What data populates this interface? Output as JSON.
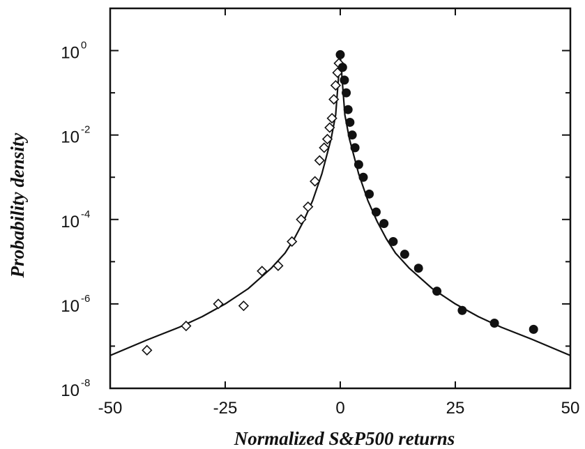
{
  "chart_data": {
    "type": "scatter",
    "title": "",
    "xlabel": "Normalized S&P500 returns",
    "ylabel": "Probability density",
    "xlim": [
      -50,
      50
    ],
    "ylim": [
      1e-08,
      10
    ],
    "yscale": "log",
    "grid": false,
    "x_ticks": [
      -50,
      -25,
      0,
      25,
      50
    ],
    "x_tick_labels": [
      "-50",
      "-25",
      "0",
      "25",
      "50"
    ],
    "y_ticks": [
      {
        "value": 1e-08,
        "base": "10",
        "exp": "-8"
      },
      {
        "value": 1e-06,
        "base": "10",
        "exp": "-6"
      },
      {
        "value": 0.0001,
        "base": "10",
        "exp": "-4"
      },
      {
        "value": 0.01,
        "base": "10",
        "exp": "-2"
      },
      {
        "value": 1,
        "base": "10",
        "exp": "0"
      }
    ],
    "series": [
      {
        "marker": "open-diamond",
        "x": [
          -42,
          -33.5,
          -26.5,
          -21,
          -17,
          -13.5,
          -10.5,
          -8.5,
          -7,
          -5.5,
          -4.5,
          -3.5,
          -2.8,
          -2.3,
          -1.8,
          -1.4,
          -1.0,
          -0.6,
          -0.3
        ],
        "y": [
          8e-08,
          3e-07,
          1e-06,
          9e-07,
          6e-06,
          8e-06,
          3e-05,
          0.0001,
          0.0002,
          0.0008,
          0.0025,
          0.005,
          0.008,
          0.015,
          0.025,
          0.07,
          0.15,
          0.3,
          0.5
        ]
      },
      {
        "marker": "filled-circle",
        "x": [
          0,
          0.5,
          0.9,
          1.3,
          1.7,
          2.1,
          2.6,
          3.2,
          4.0,
          5.0,
          6.3,
          7.8,
          9.5,
          11.5,
          14,
          17,
          21,
          26.5,
          33.5,
          42
        ],
        "y": [
          0.8,
          0.4,
          0.2,
          0.1,
          0.04,
          0.02,
          0.01,
          0.005,
          0.002,
          0.001,
          0.0004,
          0.00015,
          8e-05,
          3e-05,
          1.5e-05,
          7e-06,
          2e-06,
          7e-07,
          3.5e-07,
          2.5e-07
        ]
      },
      {
        "marker": "line",
        "x": [
          -50,
          -42,
          -35,
          -30,
          -25,
          -20,
          -15,
          -12,
          -10,
          -8,
          -6,
          -4,
          -2,
          -1,
          0,
          1,
          2,
          4,
          6,
          8,
          10,
          12,
          15,
          20,
          25,
          30,
          35,
          42,
          50
        ],
        "y": [
          6e-08,
          1.4e-07,
          2.8e-07,
          5e-07,
          1e-06,
          2.3e-06,
          7e-06,
          1.6e-05,
          3.5e-05,
          9e-05,
          0.00028,
          0.0012,
          0.008,
          0.03,
          0.8,
          0.03,
          0.008,
          0.0012,
          0.00028,
          9e-05,
          3.5e-05,
          1.6e-05,
          7e-06,
          2.3e-06,
          1e-06,
          5e-07,
          2.8e-07,
          1.4e-07,
          6e-08
        ]
      }
    ]
  }
}
